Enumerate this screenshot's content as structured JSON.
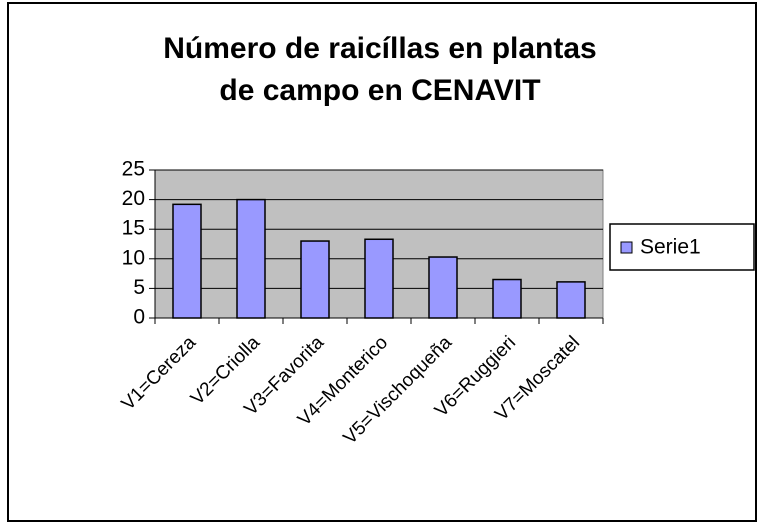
{
  "chart_data": {
    "type": "bar",
    "title": [
      "Número de raicíllas en plantas",
      "de campo en CENAVIT"
    ],
    "categories": [
      "V1=Cereza",
      "V2=Criolla",
      "V3=Favorita",
      "V4=Monterico",
      "V5=Vischoqueña",
      "V6=Ruggieri",
      "V7=Moscatel"
    ],
    "series": [
      {
        "name": "Serie1",
        "color": "#9999ff",
        "values": [
          19.2,
          20,
          13,
          13.3,
          10.3,
          6.5,
          6.1
        ]
      }
    ],
    "ylim": [
      0,
      25
    ],
    "yticks": [
      0,
      5,
      10,
      15,
      20,
      25
    ],
    "grid": true,
    "legend": "right"
  }
}
